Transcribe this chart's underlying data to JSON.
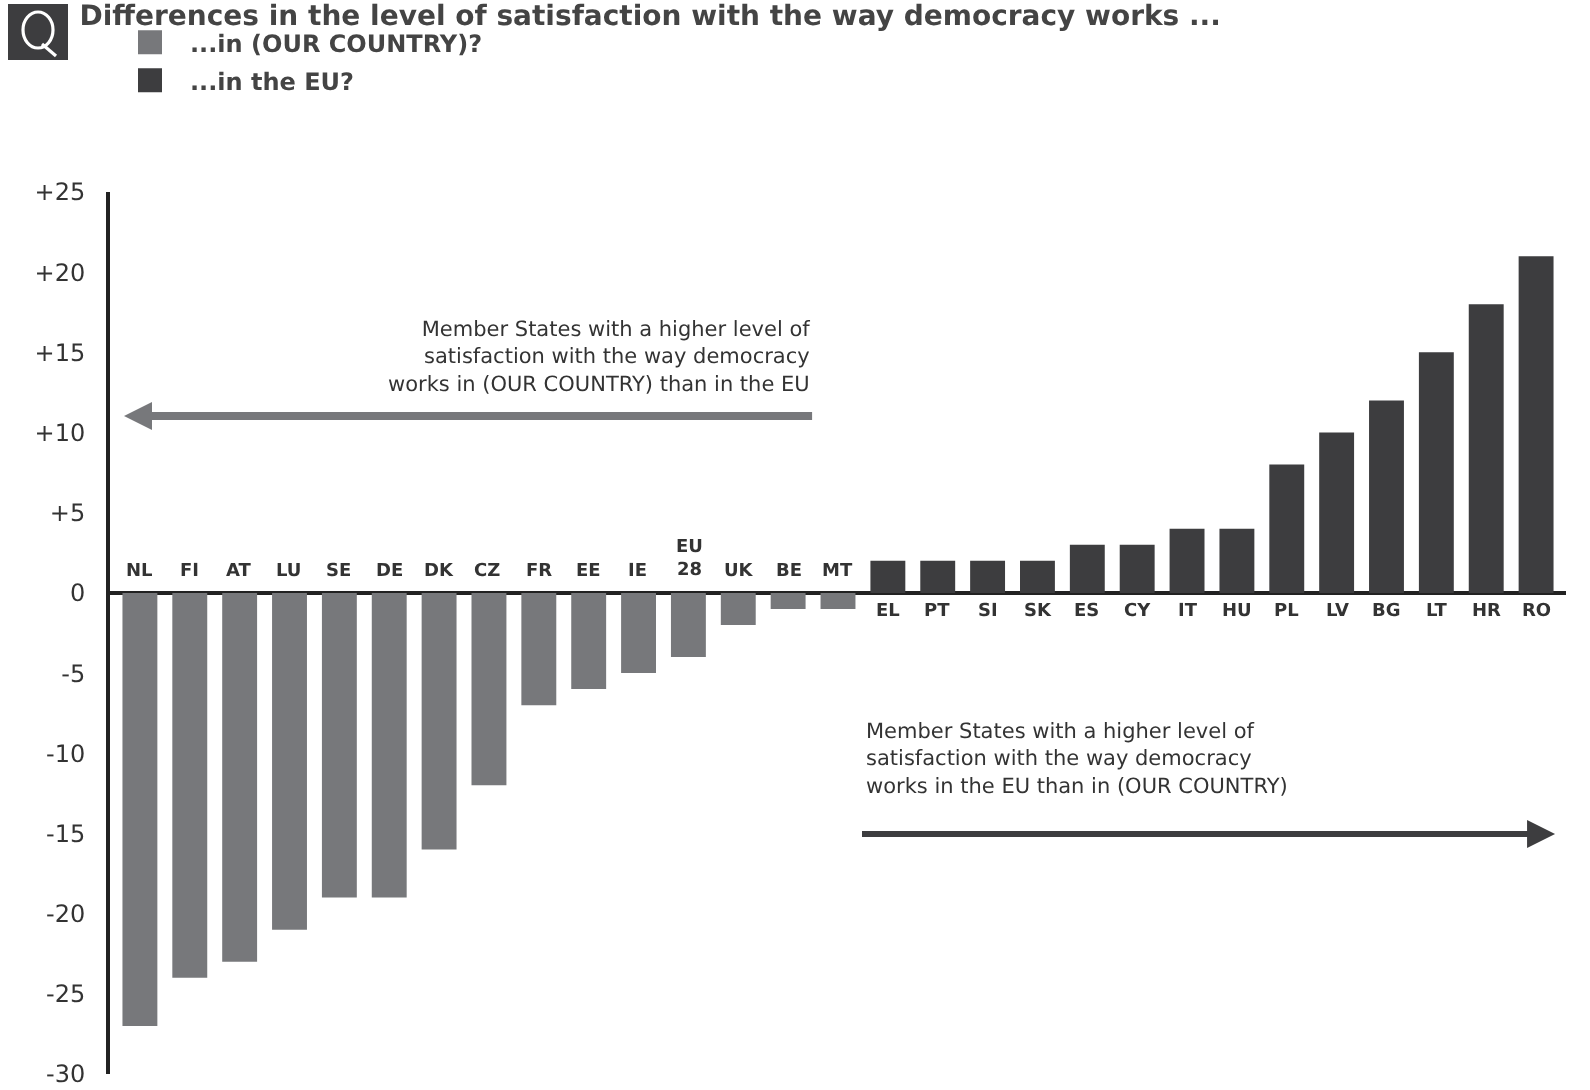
{
  "chart_data": {
    "type": "bar",
    "title": "Differences in the level of satisfaction with the way democracy works ...",
    "categories": [
      "NL",
      "FI",
      "AT",
      "LU",
      "SE",
      "DE",
      "DK",
      "CZ",
      "FR",
      "EE",
      "IE",
      "EU 28",
      "UK",
      "BE",
      "MT",
      "EL",
      "PT",
      "SI",
      "SK",
      "ES",
      "CY",
      "IT",
      "HU",
      "PL",
      "LV",
      "BG",
      "LT",
      "HR",
      "RO"
    ],
    "series": [
      {
        "name": "...in (OUR COUNTRY)?",
        "color": "#77787b",
        "values": [
          -27,
          -24,
          -23,
          -21,
          -19,
          -19,
          -16,
          -12,
          -7,
          -6,
          -5,
          -4,
          -2,
          -1,
          -1,
          null,
          null,
          null,
          null,
          null,
          null,
          null,
          null,
          null,
          null,
          null,
          null,
          null,
          null
        ]
      },
      {
        "name": "...in the EU?",
        "color": "#3d3d3f",
        "values": [
          null,
          null,
          null,
          null,
          null,
          null,
          null,
          null,
          null,
          null,
          null,
          null,
          null,
          null,
          null,
          2,
          2,
          2,
          2,
          3,
          3,
          4,
          4,
          8,
          10,
          12,
          15,
          18,
          21
        ]
      }
    ],
    "ylim": [
      -30,
      25
    ],
    "yticks": [
      {
        "value": 25,
        "label": "+25"
      },
      {
        "value": 20,
        "label": "+20"
      },
      {
        "value": 15,
        "label": "+15"
      },
      {
        "value": 10,
        "label": "+10"
      },
      {
        "value": 5,
        "label": "+5"
      },
      0,
      -5,
      -10,
      -15,
      -20,
      -25,
      -30
    ],
    "annotations": [
      "Member States with a higher level of satisfaction with the way democracy works in (OUR COUNTRY) than in the EU",
      "Member States with a higher level of satisfaction with the way democracy works in the EU than in (OUR COUNTRY)"
    ],
    "legend": "top left",
    "grid": false
  }
}
